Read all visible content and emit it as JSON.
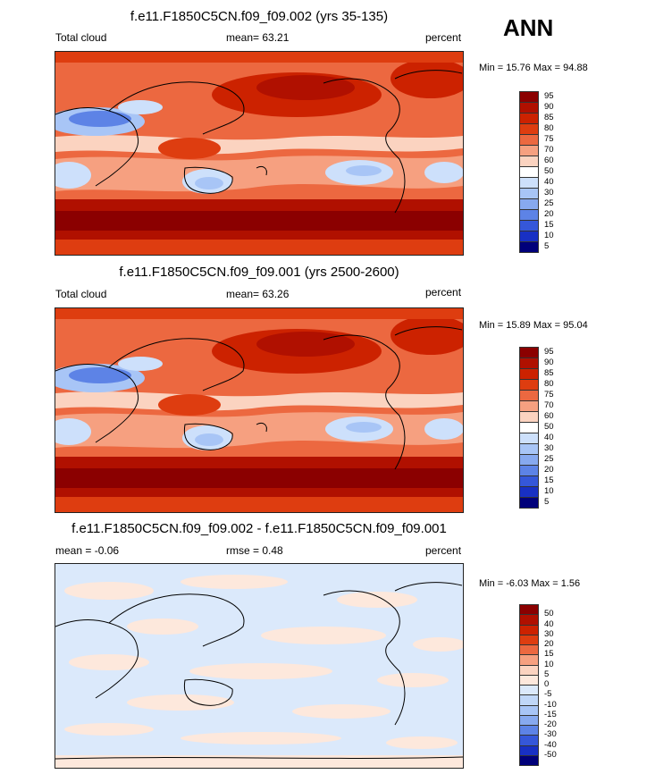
{
  "season": "ANN",
  "panels": [
    {
      "title": "f.e11.F1850C5CN.f09_f09.002 (yrs 35-135)",
      "left_label": "Total cloud",
      "stat_label": "mean=  63.21",
      "units": "percent",
      "minmax": "Min =  15.76 Max =  94.88",
      "levels": [
        "95",
        "90",
        "85",
        "80",
        "75",
        "70",
        "60",
        "50",
        "40",
        "30",
        "25",
        "20",
        "15",
        "10",
        "5"
      ],
      "colors": [
        "#8b0000",
        "#b01000",
        "#cc2200",
        "#de3d10",
        "#ec6840",
        "#f6a080",
        "#fbd3c0",
        "#ffffff",
        "#cde0fb",
        "#a8c5f6",
        "#87a9ef",
        "#5d83e6",
        "#3557d9",
        "#1830c4",
        "#00007a"
      ]
    },
    {
      "title": "f.e11.F1850C5CN.f09_f09.001 (yrs 2500-2600)",
      "left_label": "Total cloud",
      "stat_label": "mean=  63.26",
      "units": "percent",
      "minmax": "Min =  15.89 Max =  95.04",
      "levels": [
        "95",
        "90",
        "85",
        "80",
        "75",
        "70",
        "60",
        "50",
        "40",
        "30",
        "25",
        "20",
        "15",
        "10",
        "5"
      ],
      "colors": [
        "#8b0000",
        "#b01000",
        "#cc2200",
        "#de3d10",
        "#ec6840",
        "#f6a080",
        "#fbd3c0",
        "#ffffff",
        "#cde0fb",
        "#a8c5f6",
        "#87a9ef",
        "#5d83e6",
        "#3557d9",
        "#1830c4",
        "#00007a"
      ]
    },
    {
      "title": "f.e11.F1850C5CN.f09_f09.002 - f.e11.F1850C5CN.f09_f09.001",
      "left_label": "mean =  -0.06",
      "stat_label": "rmse =   0.48",
      "units": "percent",
      "minmax": "Min =  -6.03 Max =   1.56",
      "levels": [
        "50",
        "40",
        "30",
        "20",
        "15",
        "10",
        "5",
        "0",
        "-5",
        "-10",
        "-15",
        "-20",
        "-30",
        "-40",
        "-50"
      ],
      "colors": [
        "#8b0000",
        "#b01000",
        "#cc2200",
        "#de3d10",
        "#ec6840",
        "#f6a080",
        "#fbd3c0",
        "#fde8dc",
        "#dbe9fb",
        "#c0d7f8",
        "#a8c5f6",
        "#87a9ef",
        "#5d83e6",
        "#3557d9",
        "#1830c4",
        "#00007a"
      ]
    }
  ],
  "chart_data": [
    {
      "type": "heatmap",
      "title": "f.e11.F1850C5CN.f09_f09.002 (yrs 35-135)",
      "variable": "Total cloud",
      "units": "percent",
      "mean": 63.21,
      "min": 15.76,
      "max": 94.88,
      "contour_levels": [
        5,
        10,
        15,
        20,
        25,
        30,
        40,
        50,
        60,
        70,
        75,
        80,
        85,
        90,
        95
      ],
      "projection": "global cylindrical equidistant, centered on 180"
    },
    {
      "type": "heatmap",
      "title": "f.e11.F1850C5CN.f09_f09.001 (yrs 2500-2600)",
      "variable": "Total cloud",
      "units": "percent",
      "mean": 63.26,
      "min": 15.89,
      "max": 95.04,
      "contour_levels": [
        5,
        10,
        15,
        20,
        25,
        30,
        40,
        50,
        60,
        70,
        75,
        80,
        85,
        90,
        95
      ],
      "projection": "global cylindrical equidistant, centered on 180"
    },
    {
      "type": "heatmap",
      "title": "f.e11.F1850C5CN.f09_f09.002 - f.e11.F1850C5CN.f09_f09.001",
      "units": "percent",
      "mean": -0.06,
      "rmse": 0.48,
      "min": -6.03,
      "max": 1.56,
      "contour_levels": [
        -50,
        -40,
        -30,
        -20,
        -15,
        -10,
        -5,
        0,
        5,
        10,
        15,
        20,
        30,
        40,
        50
      ],
      "projection": "global cylindrical equidistant, centered on 180"
    }
  ]
}
